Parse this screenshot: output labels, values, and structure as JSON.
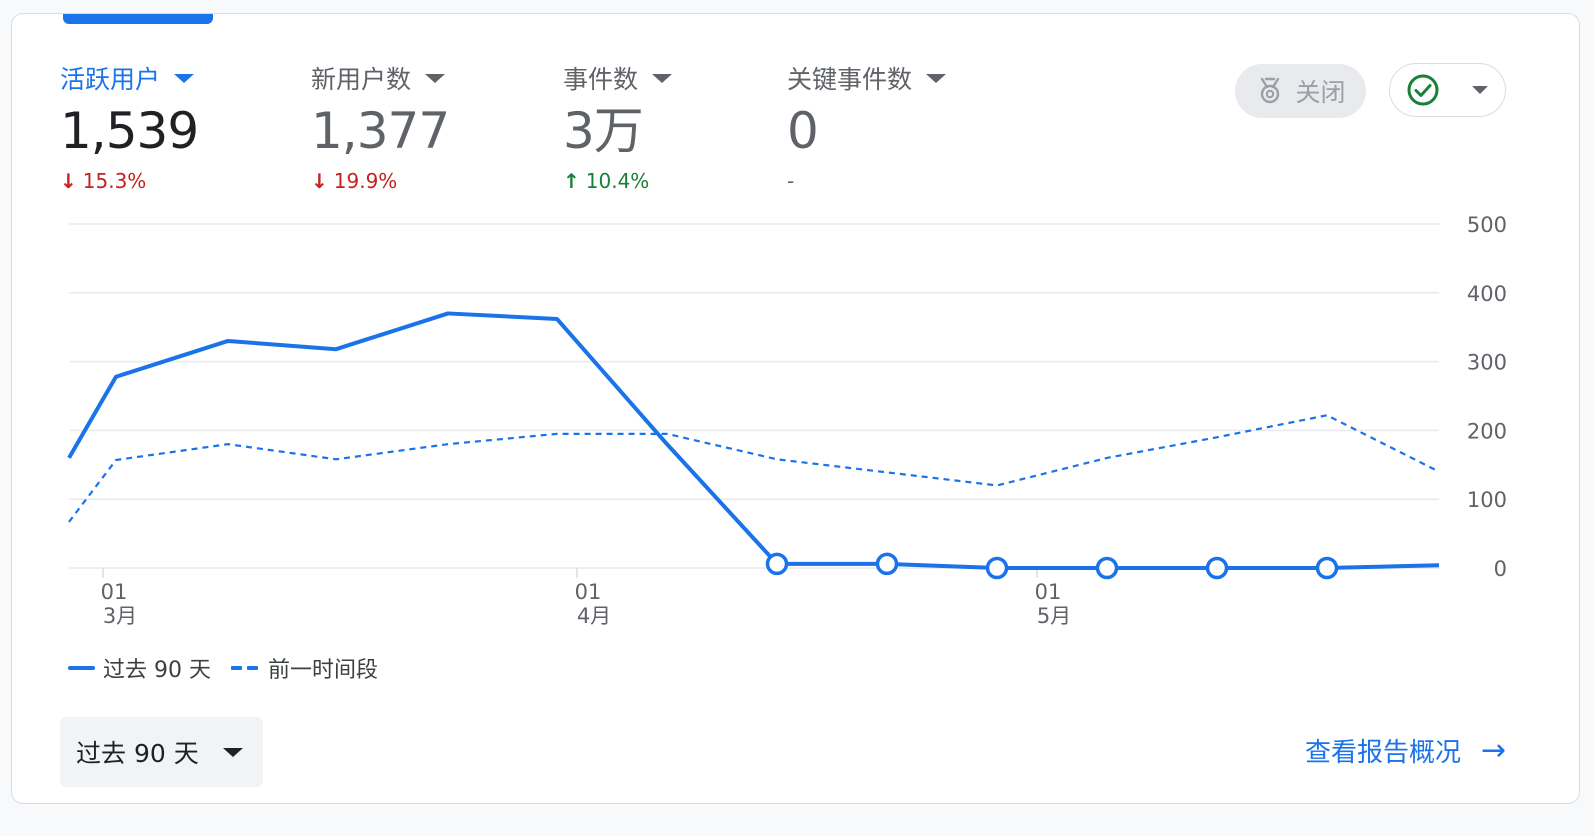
{
  "metrics": [
    {
      "label": "活跃用户",
      "value": "1,539",
      "delta_arrow": "↓",
      "delta": "15.3%",
      "direction": "down",
      "active": true
    },
    {
      "label": "新用户数",
      "value": "1,377",
      "delta_arrow": "↓",
      "delta": "19.9%",
      "direction": "down",
      "active": false
    },
    {
      "label": "事件数",
      "value": "3万",
      "delta_arrow": "↑",
      "delta": "10.4%",
      "direction": "up",
      "active": false
    },
    {
      "label": "关键事件数",
      "value": "0",
      "delta_arrow": "",
      "delta": "-",
      "direction": "none",
      "active": false
    }
  ],
  "toolbar": {
    "close_label": "关闭",
    "insights_icon": "insights-icon",
    "status_icon": "check-circle-icon"
  },
  "chart_data": {
    "type": "line",
    "y_ticks": [
      "500",
      "400",
      "300",
      "200",
      "100",
      "0"
    ],
    "ylim": [
      0,
      500
    ],
    "x_tick_labels": [
      {
        "day": "01",
        "month": "3月"
      },
      {
        "day": "01",
        "month": "4月"
      },
      {
        "day": "01",
        "month": "5月"
      }
    ],
    "series": [
      {
        "name": "过去 90 天",
        "style": "solid",
        "values": [
          160,
          278,
          330,
          318,
          370,
          362,
          180,
          6,
          6,
          0,
          0,
          0,
          0,
          4
        ],
        "markers_from_index": 7
      },
      {
        "name": "前一时间段",
        "style": "dashed",
        "values": [
          67,
          157,
          180,
          158,
          180,
          195,
          195,
          158,
          139,
          120,
          160,
          190,
          222,
          140
        ]
      }
    ],
    "grid": true,
    "legend": "bottom-left"
  },
  "colors": {
    "accent": "#1a73e8",
    "down": "#c5221f",
    "up": "#188038",
    "status": "#188038"
  },
  "footer": {
    "range_label": "过去 90 天",
    "view_report_label": "查看报告概况"
  }
}
